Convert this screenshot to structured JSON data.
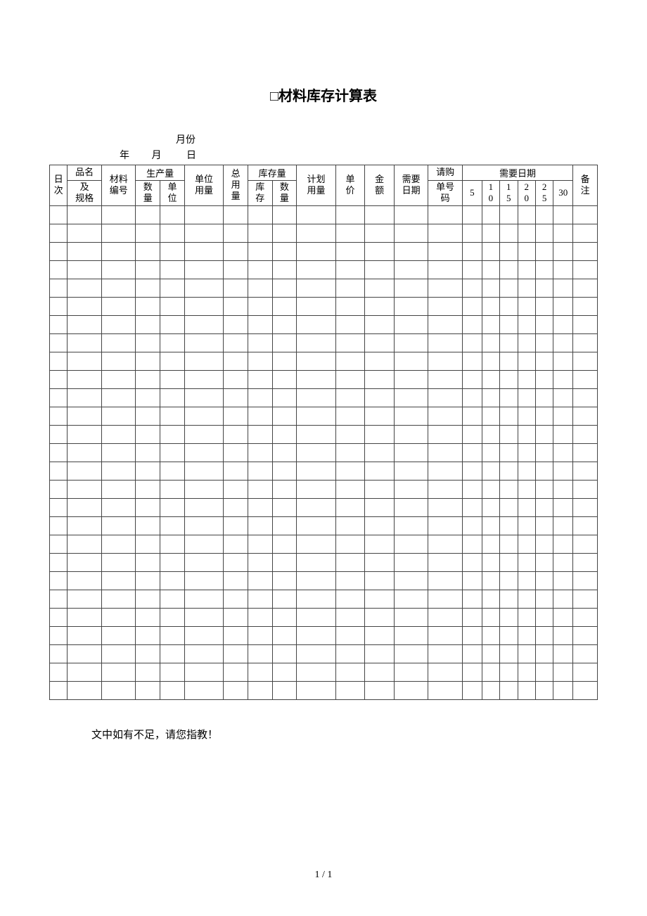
{
  "title": "□材料库存计算表",
  "subtitle_line1": "月份",
  "date_labels": {
    "year": "年",
    "month": "月",
    "day": "日"
  },
  "headers": {
    "col_seq": "日次",
    "col_name_spec_top": "品名",
    "col_name_spec_mid": "及",
    "col_name_spec_bot": "规格",
    "col_mat_code_top": "材料",
    "col_mat_code_bot": "编号",
    "grp_prod": "生产量",
    "col_qty_top": "数",
    "col_qty_bot": "量",
    "col_unit_top": "单",
    "col_unit_bot": "位",
    "col_unit_usage_top": "单位",
    "col_unit_usage_bot": "用量",
    "col_total_usage_top": "总",
    "col_total_usage_mid": "用",
    "col_total_usage_bot": "量",
    "grp_stock": "库存量",
    "col_stock_top": "库",
    "col_stock_bot": "存",
    "col_sqty_top": "数",
    "col_sqty_bot": "量",
    "col_plan_usage_top": "计划",
    "col_plan_usage_bot": "用量",
    "col_price_top": "单",
    "col_price_bot": "价",
    "col_amount_top": "金",
    "col_amount_bot": "额",
    "col_need_date_top": "需要",
    "col_need_date_bot": "日期",
    "col_po_top": "请购",
    "col_po_mid1": "单号",
    "col_po_mid2": "码",
    "grp_need_date": "需要日期",
    "nd_5": "5",
    "nd_10": "10",
    "nd_15": "15",
    "nd_20": "20",
    "nd_25": "25",
    "nd_30": "30",
    "col_remark_top": "备",
    "col_remark_bot": "注"
  },
  "body_rows": 27,
  "footer_note": "文中如有不足，请您指教！",
  "page_number": "1 / 1",
  "colors": {
    "border": "#444444",
    "text": "#000000",
    "background": "#ffffff"
  }
}
